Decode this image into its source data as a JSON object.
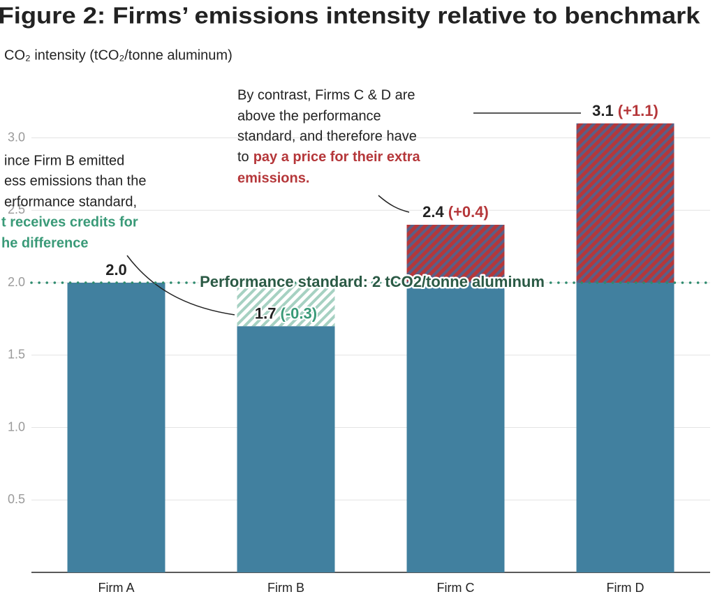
{
  "chart_data": {
    "type": "bar",
    "title": "Figure 2: Firms’ emissions intensity relative to benchmark",
    "subtitle": "CO₂ intensity (tCO₂/tonne aluminum)",
    "categories": [
      "Firm A",
      "Firm B",
      "Firm C",
      "Firm D"
    ],
    "values": [
      2.0,
      1.7,
      2.4,
      3.1
    ],
    "value_labels": [
      "2.0",
      "1.7",
      "2.4",
      "3.1"
    ],
    "differences": [
      null,
      -0.3,
      0.4,
      1.1
    ],
    "difference_labels": [
      null,
      "(-0.3)",
      "(+0.4)",
      "(+1.1)"
    ],
    "color": "#41809f",
    "over_color": "#b5373a",
    "under_color": "#3a9a78",
    "benchmark": {
      "value": 2,
      "label": "Performance standard: 2 tCO2/tonne aluminum",
      "color": "#2e8b6e"
    },
    "ylim": [
      0,
      3.2
    ],
    "yticks": [
      0.5,
      {
        "value": 1,
        "label": "1.0"
      },
      1.5,
      {
        "value": 2,
        "label": "2.0"
      },
      2.5,
      {
        "value": 3,
        "label": "3.0"
      }
    ],
    "grid": true,
    "annotations": [
      {
        "text": [
          "ince Firm B emitted",
          "ess emissions than the",
          "erformance standard,"
        ],
        "highlight": [
          "t receives credits for",
          "he difference"
        ]
      },
      {
        "text": [
          "By contrast, Firms C & D are",
          "above the performance",
          "standard, and therefore have",
          "to"
        ],
        "highlight": [
          "pay a price for their extra",
          "emissions."
        ]
      }
    ]
  }
}
